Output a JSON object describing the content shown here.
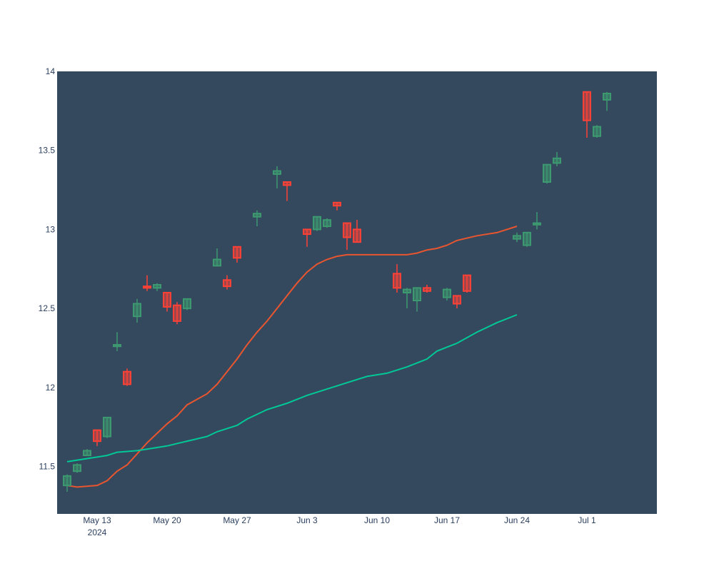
{
  "chart_data": {
    "type": "candlestick",
    "title": "",
    "xlabel": "",
    "ylabel": "",
    "ylim": [
      11.2,
      14.0
    ],
    "grid": false,
    "legend": "none",
    "colors": {
      "plot_background": "#34495e",
      "paper_background": "#ffffff",
      "increasing": "#3d9970",
      "decreasing": "#ff4136",
      "ma_short": "#e8552f",
      "ma_long": "#00c896",
      "tick_text": "#2a3f5f"
    },
    "x_ticks": [
      {
        "date": "2024-05-13",
        "label": "May 13",
        "sublabel": "2024"
      },
      {
        "date": "2024-05-20",
        "label": "May 20",
        "sublabel": ""
      },
      {
        "date": "2024-05-27",
        "label": "May 27",
        "sublabel": ""
      },
      {
        "date": "2024-06-03",
        "label": "Jun 3",
        "sublabel": ""
      },
      {
        "date": "2024-06-10",
        "label": "Jun 10",
        "sublabel": ""
      },
      {
        "date": "2024-06-17",
        "label": "Jun 17",
        "sublabel": ""
      },
      {
        "date": "2024-06-24",
        "label": "Jun 24",
        "sublabel": ""
      },
      {
        "date": "2024-07-01",
        "label": "Jul 1",
        "sublabel": ""
      }
    ],
    "y_ticks": [
      {
        "value": 11.5,
        "label": "11.5"
      },
      {
        "value": 12,
        "label": "12"
      },
      {
        "value": 12.5,
        "label": "12.5"
      },
      {
        "value": 13,
        "label": "13"
      },
      {
        "value": 13.5,
        "label": "13.5"
      },
      {
        "value": 14,
        "label": "14"
      }
    ],
    "x_range": [
      "2024-05-09",
      "2024-07-08"
    ],
    "candles": [
      {
        "date": "2024-05-10",
        "open": 11.38,
        "high": 11.45,
        "low": 11.34,
        "close": 11.44
      },
      {
        "date": "2024-05-11",
        "open": 11.47,
        "high": 11.52,
        "low": 11.46,
        "close": 11.51
      },
      {
        "date": "2024-05-12",
        "open": 11.57,
        "high": 11.61,
        "low": 11.57,
        "close": 11.6
      },
      {
        "date": "2024-05-13",
        "open": 11.73,
        "high": 11.73,
        "low": 11.63,
        "close": 11.66
      },
      {
        "date": "2024-05-14",
        "open": 11.69,
        "high": 11.81,
        "low": 11.68,
        "close": 11.81
      },
      {
        "date": "2024-05-15",
        "open": 12.26,
        "high": 12.35,
        "low": 12.23,
        "close": 12.27
      },
      {
        "date": "2024-05-16",
        "open": 12.1,
        "high": 12.12,
        "low": 12.01,
        "close": 12.02
      },
      {
        "date": "2024-05-17",
        "open": 12.45,
        "high": 12.56,
        "low": 12.41,
        "close": 12.53
      },
      {
        "date": "2024-05-18",
        "open": 12.64,
        "high": 12.71,
        "low": 12.61,
        "close": 12.63
      },
      {
        "date": "2024-05-19",
        "open": 12.63,
        "high": 12.66,
        "low": 12.61,
        "close": 12.65
      },
      {
        "date": "2024-05-20",
        "open": 12.6,
        "high": 12.6,
        "low": 12.48,
        "close": 12.51
      },
      {
        "date": "2024-05-21",
        "open": 12.52,
        "high": 12.54,
        "low": 12.4,
        "close": 12.42
      },
      {
        "date": "2024-05-22",
        "open": 12.5,
        "high": 12.56,
        "low": 12.49,
        "close": 12.56
      },
      {
        "date": "2024-05-23",
        "open": 12.77,
        "high": 12.88,
        "low": 12.77,
        "close": 12.81
      },
      {
        "date": "2024-05-24",
        "open": 12.68,
        "high": 12.71,
        "low": 12.62,
        "close": 12.64
      },
      {
        "date": "2024-05-25",
        "open": 12.89,
        "high": 12.89,
        "low": 12.79,
        "close": 12.82
      },
      {
        "date": "2024-05-26",
        "open": 13.08,
        "high": 13.12,
        "low": 13.02,
        "close": 13.1
      },
      {
        "date": "2024-05-27",
        "open": 13.35,
        "high": 13.4,
        "low": 13.26,
        "close": 13.37
      },
      {
        "date": "2024-05-28",
        "open": 13.3,
        "high": 13.3,
        "low": 13.18,
        "close": 13.28
      },
      {
        "date": "2024-05-29",
        "open": 13.0,
        "high": 13.0,
        "low": 12.89,
        "close": 12.97
      },
      {
        "date": "2024-05-30",
        "open": 13.0,
        "high": 13.08,
        "low": 12.99,
        "close": 13.08
      },
      {
        "date": "2024-05-31",
        "open": 13.02,
        "high": 13.07,
        "low": 13.01,
        "close": 13.06
      },
      {
        "date": "2024-06-01",
        "open": 13.17,
        "high": 13.17,
        "low": 13.12,
        "close": 13.15
      },
      {
        "date": "2024-06-02",
        "open": 13.04,
        "high": 13.04,
        "low": 12.87,
        "close": 12.95
      },
      {
        "date": "2024-06-03",
        "open": 13.0,
        "high": 13.06,
        "low": 12.92,
        "close": 12.92
      },
      {
        "date": "2024-06-04",
        "open": 12.72,
        "high": 12.78,
        "low": 12.6,
        "close": 12.63
      },
      {
        "date": "2024-06-05",
        "open": 12.6,
        "high": 12.63,
        "low": 12.5,
        "close": 12.62
      },
      {
        "date": "2024-06-06",
        "open": 12.55,
        "high": 12.63,
        "low": 12.48,
        "close": 12.63
      },
      {
        "date": "2024-06-07",
        "open": 12.63,
        "high": 12.65,
        "low": 12.6,
        "close": 12.61
      },
      {
        "date": "2024-06-08",
        "open": 12.57,
        "high": 12.63,
        "low": 12.55,
        "close": 12.62
      },
      {
        "date": "2024-06-09",
        "open": 12.58,
        "high": 12.58,
        "low": 12.5,
        "close": 12.53
      },
      {
        "date": "2024-06-10",
        "open": 12.71,
        "high": 12.71,
        "low": 12.6,
        "close": 12.61
      },
      {
        "date": "2024-06-11",
        "open": 12.94,
        "high": 12.98,
        "low": 12.92,
        "close": 12.96
      },
      {
        "date": "2024-06-12",
        "open": 12.9,
        "high": 12.98,
        "low": 12.89,
        "close": 12.98
      },
      {
        "date": "2024-06-13",
        "open": 13.03,
        "high": 13.11,
        "low": 13.0,
        "close": 13.04
      },
      {
        "date": "2024-06-14",
        "open": 13.3,
        "high": 13.41,
        "low": 13.29,
        "close": 13.41
      },
      {
        "date": "2024-06-15",
        "open": 13.42,
        "high": 13.49,
        "low": 13.4,
        "close": 13.45
      },
      {
        "date": "2024-06-16",
        "open": 13.87,
        "high": 13.87,
        "low": 13.58,
        "close": 13.69
      },
      {
        "date": "2024-06-17",
        "open": 13.59,
        "high": 13.66,
        "low": 13.58,
        "close": 13.65
      },
      {
        "date": "2024-06-18",
        "open": 13.82,
        "high": 13.87,
        "low": 13.75,
        "close": 13.86
      }
    ],
    "candle_positions": [
      "2024-05-10",
      "2024-05-11",
      "2024-05-12",
      "2024-05-13",
      "2024-05-14",
      "2024-05-15",
      "2024-05-16",
      "2024-05-17",
      "2024-05-18",
      "2024-05-19",
      "2024-05-20",
      "2024-05-21",
      "2024-05-22",
      "2024-05-25",
      "2024-05-26",
      "2024-05-27",
      "2024-05-29",
      "2024-05-31",
      "2024-06-01",
      "2024-06-03",
      "2024-06-04",
      "2024-06-05",
      "2024-06-06",
      "2024-06-07",
      "2024-06-08",
      "2024-06-12",
      "2024-06-13",
      "2024-06-14",
      "2024-06-15",
      "2024-06-17",
      "2024-06-18",
      "2024-06-19",
      "2024-06-24",
      "2024-06-25",
      "2024-06-26",
      "2024-06-27",
      "2024-06-28",
      "2024-07-01",
      "2024-07-02",
      "2024-07-03"
    ],
    "series": [
      {
        "values": [
          [
            "2024-05-10",
            11.38
          ],
          [
            "2024-05-11",
            11.37
          ],
          [
            "2024-05-13",
            11.38
          ],
          [
            "2024-05-14",
            11.41
          ],
          [
            "2024-05-15",
            11.47
          ],
          [
            "2024-05-16",
            11.51
          ],
          [
            "2024-05-17",
            11.58
          ],
          [
            "2024-05-18",
            11.65
          ],
          [
            "2024-05-19",
            11.71
          ],
          [
            "2024-05-20",
            11.77
          ],
          [
            "2024-05-21",
            11.82
          ],
          [
            "2024-05-22",
            11.89
          ],
          [
            "2024-05-24",
            11.96
          ],
          [
            "2024-05-25",
            12.02
          ],
          [
            "2024-05-26",
            12.1
          ],
          [
            "2024-05-27",
            12.18
          ],
          [
            "2024-05-28",
            12.27
          ],
          [
            "2024-05-29",
            12.35
          ],
          [
            "2024-05-30",
            12.42
          ],
          [
            "2024-05-31",
            12.5
          ],
          [
            "2024-06-01",
            12.58
          ],
          [
            "2024-06-02",
            12.66
          ],
          [
            "2024-06-03",
            12.73
          ],
          [
            "2024-06-04",
            12.78
          ],
          [
            "2024-06-05",
            12.81
          ],
          [
            "2024-06-06",
            12.83
          ],
          [
            "2024-06-07",
            12.84
          ],
          [
            "2024-06-10",
            12.84
          ],
          [
            "2024-06-13",
            12.84
          ],
          [
            "2024-06-14",
            12.85
          ],
          [
            "2024-06-15",
            12.87
          ],
          [
            "2024-06-16",
            12.88
          ],
          [
            "2024-06-17",
            12.9
          ],
          [
            "2024-06-18",
            12.93
          ],
          [
            "2024-06-20",
            12.96
          ],
          [
            "2024-06-22",
            12.98
          ],
          [
            "2024-06-24",
            13.02
          ]
        ]
      },
      {
        "values": [
          [
            "2024-05-10",
            11.53
          ],
          [
            "2024-05-14",
            11.57
          ],
          [
            "2024-05-15",
            11.59
          ],
          [
            "2024-05-17",
            11.6
          ],
          [
            "2024-05-18",
            11.61
          ],
          [
            "2024-05-20",
            11.63
          ],
          [
            "2024-05-22",
            11.66
          ],
          [
            "2024-05-24",
            11.69
          ],
          [
            "2024-05-25",
            11.72
          ],
          [
            "2024-05-27",
            11.76
          ],
          [
            "2024-05-28",
            11.8
          ],
          [
            "2024-05-30",
            11.86
          ],
          [
            "2024-06-01",
            11.9
          ],
          [
            "2024-06-03",
            11.95
          ],
          [
            "2024-06-05",
            11.99
          ],
          [
            "2024-06-07",
            12.03
          ],
          [
            "2024-06-09",
            12.07
          ],
          [
            "2024-06-11",
            12.09
          ],
          [
            "2024-06-13",
            12.13
          ],
          [
            "2024-06-15",
            12.18
          ],
          [
            "2024-06-16",
            12.23
          ],
          [
            "2024-06-18",
            12.28
          ],
          [
            "2024-06-20",
            12.35
          ],
          [
            "2024-06-22",
            12.41
          ],
          [
            "2024-06-24",
            12.46
          ]
        ]
      }
    ]
  }
}
